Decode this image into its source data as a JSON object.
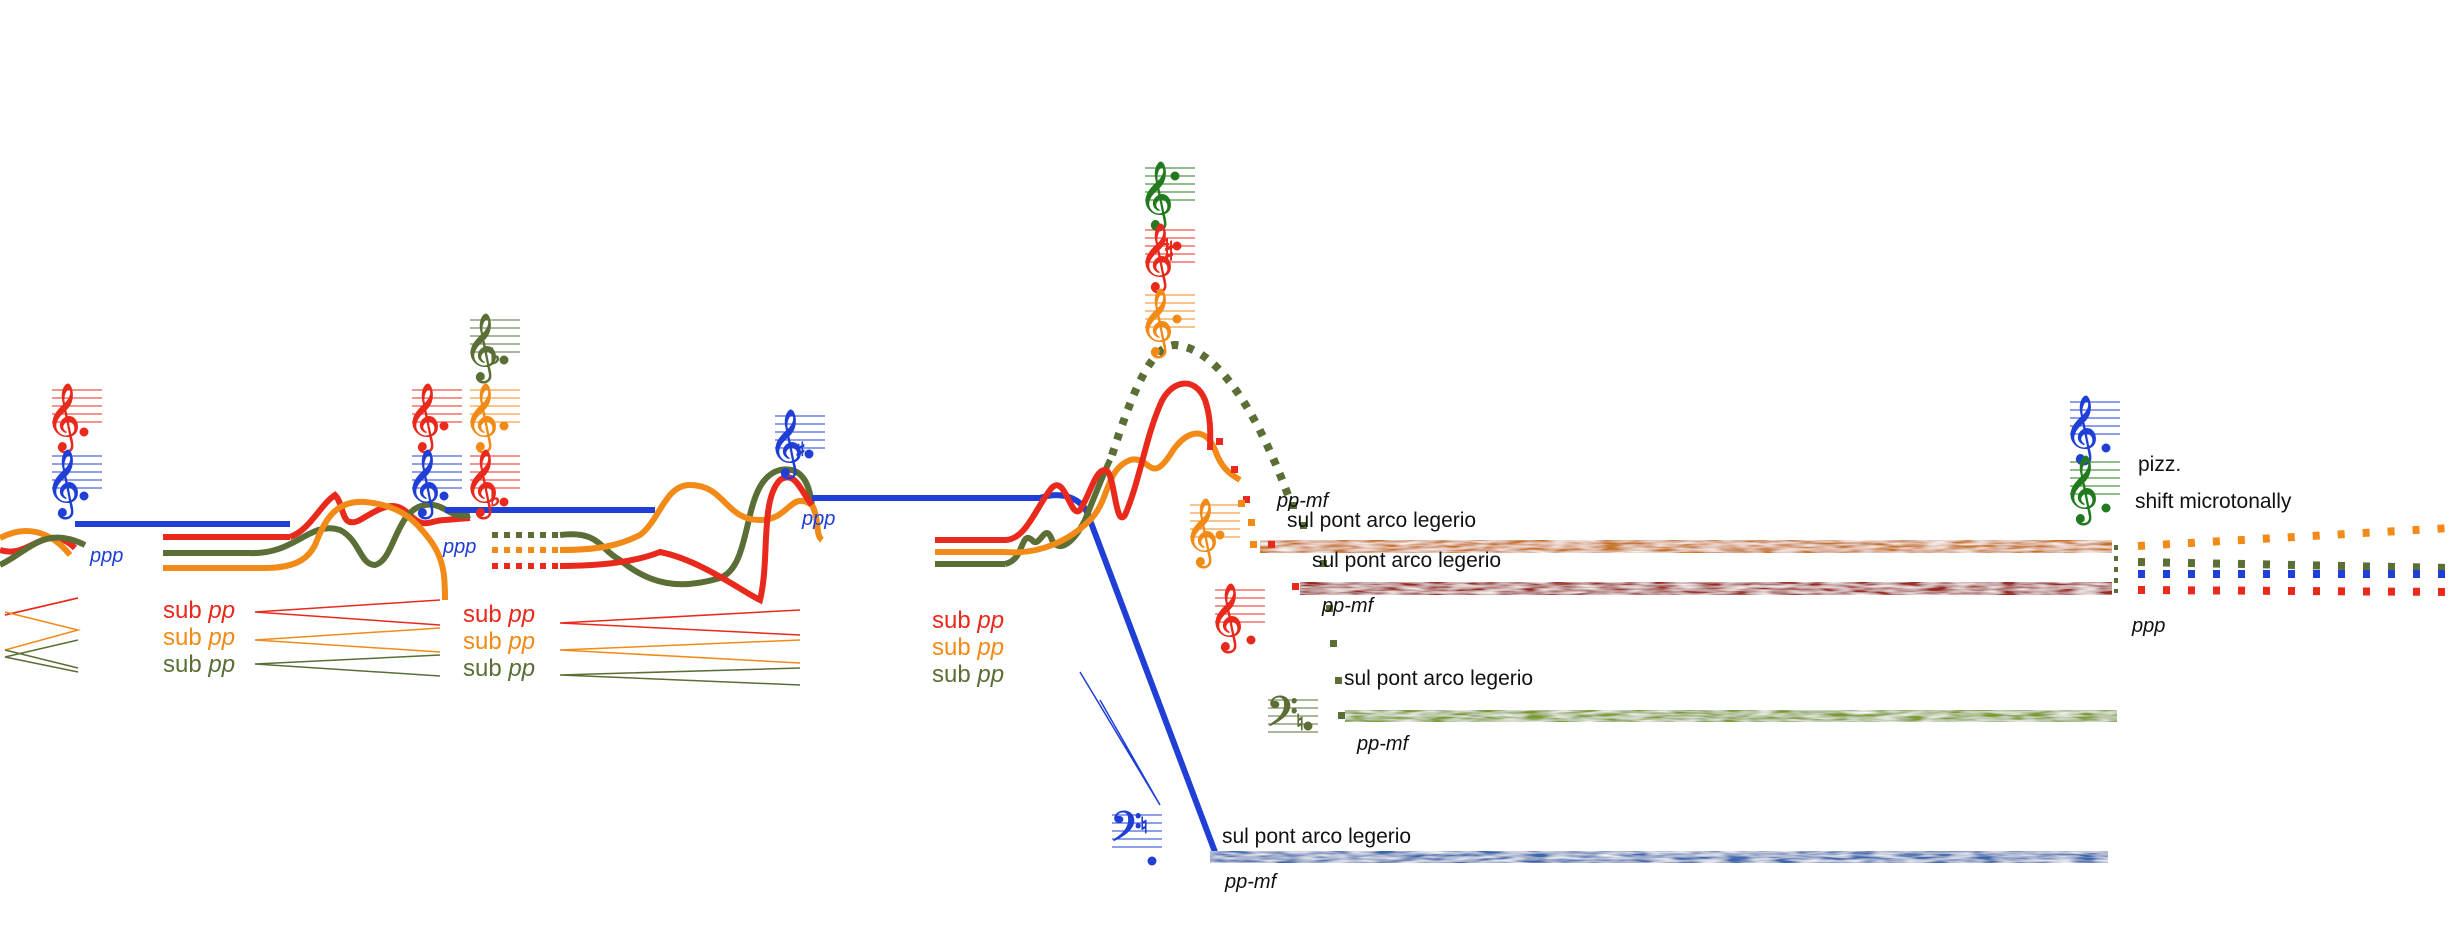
{
  "colors": {
    "red": "#e8291c",
    "orange": "#f28a17",
    "olive": "#5a6e36",
    "blue": "#1f3fd6",
    "green": "#237a1e",
    "tex_orange": "#c8741c",
    "tex_red": "#9c2a20",
    "tex_green": "#7a9a2c",
    "tex_blue": "#3c68ad"
  },
  "dynamics": {
    "ppp_1": "ppp",
    "ppp_2": "ppp",
    "ppp_3": "ppp",
    "ppp_end": "ppp",
    "pp_mf_1": "pp-mf",
    "pp_mf_2": "pp-mf",
    "pp_mf_3": "pp-mf",
    "pp_mf_4": "pp-mf"
  },
  "sub_markings": {
    "group1": [
      {
        "word": "sub",
        "dyn": "pp",
        "color": "red"
      },
      {
        "word": "sub",
        "dyn": "pp",
        "color": "orange"
      },
      {
        "word": "sub",
        "dyn": "pp",
        "color": "olive"
      }
    ],
    "group2": [
      {
        "word": "sub",
        "dyn": "pp",
        "color": "red"
      },
      {
        "word": "sub",
        "dyn": "pp",
        "color": "orange"
      },
      {
        "word": "sub",
        "dyn": "pp",
        "color": "olive"
      }
    ],
    "group3": [
      {
        "word": "sub",
        "dyn": "pp",
        "color": "red"
      },
      {
        "word": "sub",
        "dyn": "pp",
        "color": "orange"
      },
      {
        "word": "sub",
        "dyn": "pp",
        "color": "olive"
      }
    ]
  },
  "techniques": {
    "orange": "sul pont arco legerio",
    "red": "sul pont arco legerio",
    "olive": "sul pont arco legerio",
    "blue": "sul pont arco legerio"
  },
  "instructions": {
    "pizz": "pizz.",
    "shift": "shift microtonally"
  },
  "clefs": {
    "treble": "𝄞",
    "bass": "𝄢",
    "sharp": "♯",
    "flat": "♭",
    "natural": "♮",
    "half_sharp": "𝄲"
  }
}
